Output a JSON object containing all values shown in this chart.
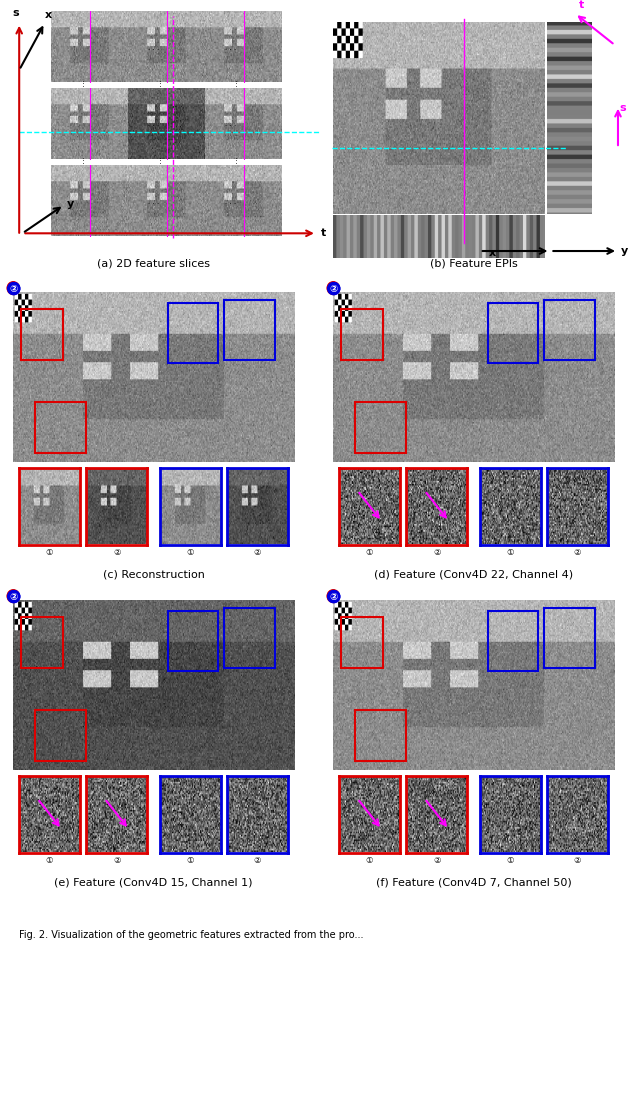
{
  "figure_width": 6.4,
  "figure_height": 11.0,
  "dpi": 100,
  "background_color": "#ffffff",
  "caption_a": "(a) 2D feature slices",
  "caption_b": "(b) Feature EPIs",
  "caption_c": "(c) Reconstruction",
  "caption_d": "(d) Feature (Conv4D 22, Channel 4)",
  "caption_e": "(e) Feature (Conv4D 15, Channel 1)",
  "caption_f": "(f) Feature (Conv4D 7, Channel 50)",
  "fig_caption": "Fig. 2. Visualization of the geometric features extracted from the pro...",
  "red_color": "#dd0000",
  "blue_color": "#0000dd",
  "magenta_color": "#ff00ff",
  "cyan_color": "#00ffff",
  "dark_red": "#cc0000",
  "axis_red": "#cc0000",
  "axis_green": "#006600"
}
